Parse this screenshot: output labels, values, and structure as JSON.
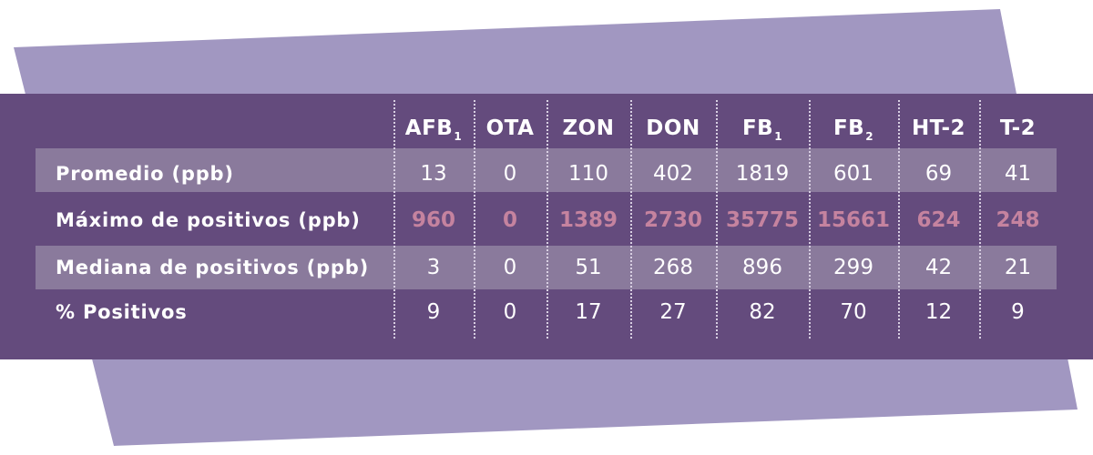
{
  "colors": {
    "background_shape": "#a197c1",
    "panel": "#644b7d",
    "band": "#8a7a9c",
    "text": "#ffffff",
    "highlight": "#c5839f"
  },
  "chart_data": {
    "type": "table",
    "columns": [
      {
        "name": "AFB",
        "sub": "1"
      },
      {
        "name": "OTA",
        "sub": ""
      },
      {
        "name": "ZON",
        "sub": ""
      },
      {
        "name": "DON",
        "sub": ""
      },
      {
        "name": "FB",
        "sub": "1"
      },
      {
        "name": "FB",
        "sub": "2"
      },
      {
        "name": "HT-2",
        "sub": ""
      },
      {
        "name": "T-2",
        "sub": ""
      }
    ],
    "rows": [
      {
        "label": "Promedio (ppb)",
        "values": [
          "13",
          "0",
          "110",
          "402",
          "1819",
          "601",
          "69",
          "41"
        ]
      },
      {
        "label": "Máximo de positivos (ppb)",
        "values": [
          "960",
          "0",
          "1389",
          "2730",
          "35775",
          "15661",
          "624",
          "248"
        ]
      },
      {
        "label": "Mediana de positivos (ppb)",
        "values": [
          "3",
          "0",
          "51",
          "268",
          "896",
          "299",
          "42",
          "21"
        ]
      },
      {
        "label": "% Positivos",
        "values": [
          "9",
          "0",
          "17",
          "27",
          "82",
          "70",
          "12",
          "9"
        ]
      }
    ]
  }
}
